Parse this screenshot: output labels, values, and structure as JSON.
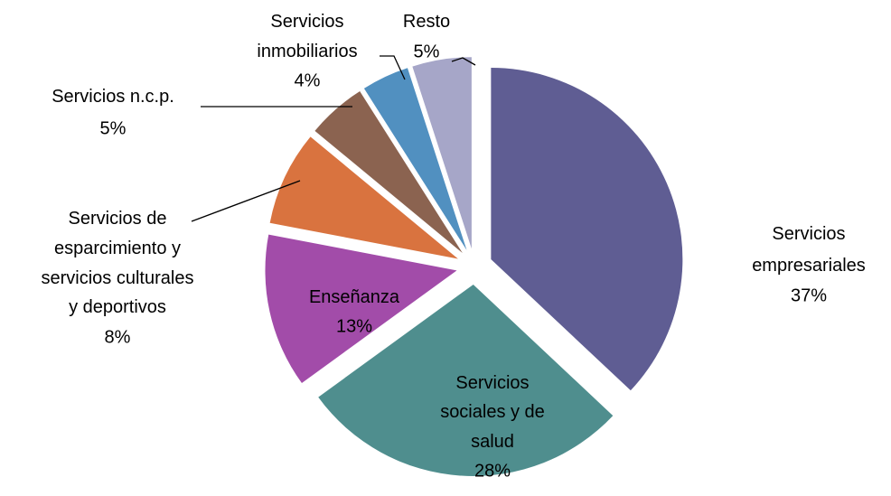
{
  "chart_data": {
    "type": "pie",
    "categories": [
      "Servicios empresariales",
      "Servicios sociales y de salud",
      "Enseñanza",
      "Servicios de esparcimiento y servicios culturales y deportivos",
      "Servicios n.c.p.",
      "Servicios inmobiliarios",
      "Resto"
    ],
    "values": [
      37,
      28,
      13,
      8,
      5,
      4,
      5
    ],
    "value_labels": [
      "37%",
      "28%",
      "13%",
      "8%",
      "5%",
      "4%",
      "5%"
    ],
    "colors": [
      "#5f5d93",
      "#4f8e8e",
      "#a24ca9",
      "#d9733f",
      "#8b6350",
      "#5190c0",
      "#a6a6c8"
    ]
  }
}
